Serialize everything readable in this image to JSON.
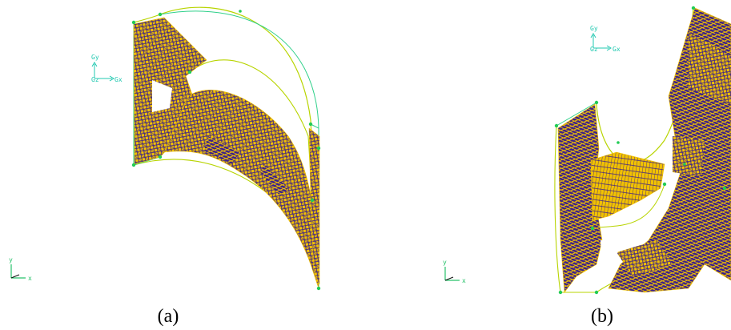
{
  "panels": [
    {
      "caption": "(a)",
      "global_axis": {
        "y_label": "Gy",
        "z_label": "Gz",
        "x_label": "Gx"
      },
      "local_axis": {
        "y_label": "y",
        "x_label": "x"
      }
    },
    {
      "caption": "(b)",
      "global_axis": {
        "y_label": "Gy",
        "z_label": "Gz",
        "x_label": "Gx"
      },
      "local_axis": {
        "y_label": "y",
        "x_label": "x"
      }
    }
  ],
  "colors": {
    "background": "#ffffff",
    "mesh_yellow": "#f2c200",
    "mesh_purple": "#3a1f8c",
    "geometry_curve": "#b8d400",
    "geometry_line": "#2fd08a",
    "vertex": "#22cc55",
    "axis": "#20c8b0",
    "local_axis": "#27c26a"
  }
}
